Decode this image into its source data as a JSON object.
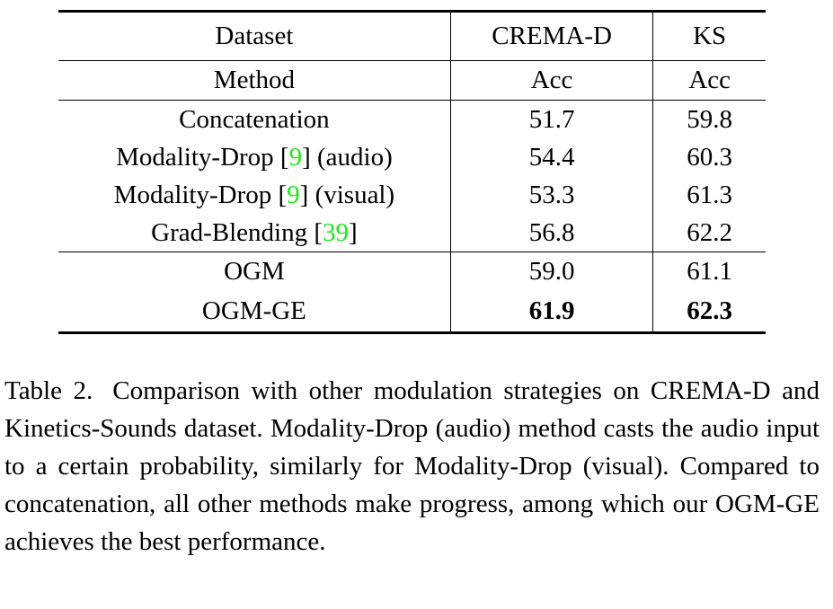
{
  "table": {
    "header": [
      [
        "Dataset",
        "CREMA-D",
        "KS"
      ],
      [
        "Method",
        "Acc",
        "Acc"
      ]
    ],
    "groups": [
      [
        {
          "cells": [
            "Concatenation",
            "51.7",
            "59.8"
          ]
        },
        {
          "cells": [
            {
              "before": "Modality-Drop [",
              "cite": "9",
              "after": "] (audio)"
            },
            "54.4",
            "60.3"
          ]
        },
        {
          "cells": [
            {
              "before": "Modality-Drop [",
              "cite": "9",
              "after": "] (visual)"
            },
            "53.3",
            "61.3"
          ]
        },
        {
          "cells": [
            {
              "before": "Grad-Blending [",
              "cite": "39",
              "after": "]"
            },
            "56.8",
            "62.2"
          ]
        }
      ],
      [
        {
          "cells": [
            "OGM",
            "59.0",
            "61.1"
          ]
        },
        {
          "cells": [
            "OGM-GE",
            "61.9",
            "62.3"
          ],
          "bold_values": true
        }
      ]
    ]
  },
  "caption": {
    "label": "Table 2.",
    "text": "Comparison with other modulation strategies on CREMA-D and Kinetics-Sounds dataset. Modality-Drop (audio) method casts the audio input to a certain probability, similarly for Modality-Drop (visual). Compared to concatenation, all other methods make progress, among which our OGM-GE achieves the best performance."
  }
}
